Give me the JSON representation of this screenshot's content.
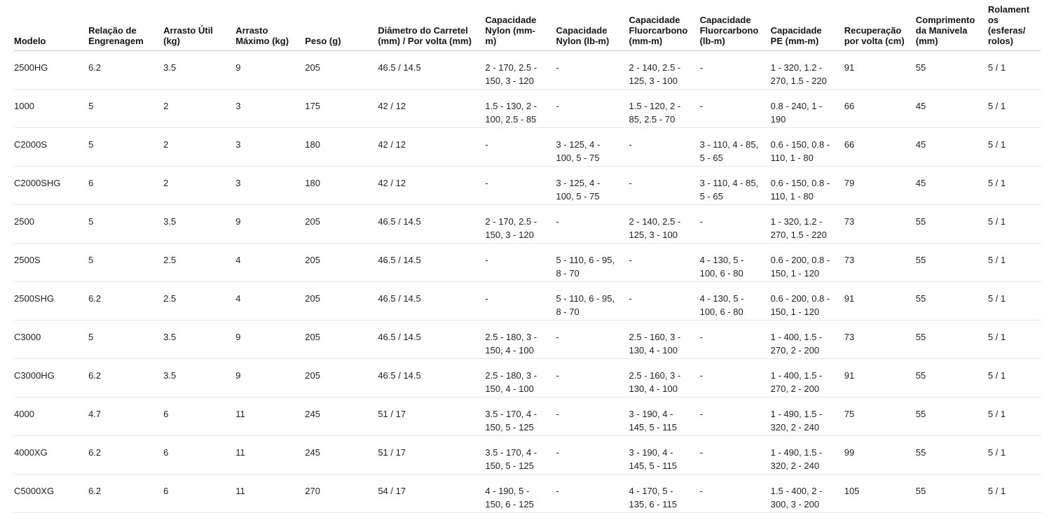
{
  "table": {
    "title": "reel-specifications",
    "colors": {
      "background": "#ffffff",
      "header_text": "#141414",
      "cell_text": "#1f1f1f",
      "header_border": "#c9c9c9",
      "row_border": "#e7e7e7"
    },
    "columns": [
      {
        "id": "modelo",
        "label": "Modelo"
      },
      {
        "id": "relacao_engrenagem",
        "label": "Relação de Engrenagem"
      },
      {
        "id": "arrasto_util",
        "label": "Arrasto Útil (kg)"
      },
      {
        "id": "arrasto_maximo",
        "label": "Arrasto Máximo (kg)"
      },
      {
        "id": "peso",
        "label": "Peso (g)"
      },
      {
        "id": "diametro_carretel",
        "label": "Diâmetro do Carretel (mm) / Por volta (mm)"
      },
      {
        "id": "cap_nylon_mm",
        "label": "Capacidade Nylon (mm-m)"
      },
      {
        "id": "cap_nylon_lb",
        "label": "Capacidade Nylon (lb-m)"
      },
      {
        "id": "cap_fluor_mm",
        "label": "Capacidade Fluorcarbono (mm-m)"
      },
      {
        "id": "cap_fluor_lb",
        "label": "Capacidade Fluorcarbono (lb-m)"
      },
      {
        "id": "cap_pe",
        "label": "Capacidade PE (mm-m)"
      },
      {
        "id": "recuperacao_volta",
        "label": "Recuperação por volta (cm)"
      },
      {
        "id": "comprimento_manivela",
        "label": "Comprimento da Manivela (mm)"
      },
      {
        "id": "rolamentos",
        "label": "Rolamentos (esferas/ rolos)"
      }
    ],
    "rows": [
      [
        "2500HG",
        "6.2",
        "3.5",
        "9",
        "205",
        "46.5 / 14.5",
        "2 - 170, 2.5 - 150, 3 - 120",
        "-",
        "2 - 140, 2.5 - 125, 3 - 100",
        "-",
        "1 - 320, 1.2 - 270, 1.5 - 220",
        "91",
        "55",
        "5 / 1"
      ],
      [
        "1000",
        "5",
        "2",
        "3",
        "175",
        "42 / 12",
        "1.5 - 130, 2 - 100, 2.5 - 85",
        "-",
        "1.5 - 120, 2 - 85, 2.5 - 70",
        "-",
        "0.8 - 240, 1 - 190",
        "66",
        "45",
        "5 / 1"
      ],
      [
        "C2000S",
        "5",
        "2",
        "3",
        "180",
        "42 / 12",
        "-",
        "3 - 125, 4 - 100, 5 - 75",
        "-",
        "3 - 110, 4 - 85, 5 - 65",
        "0.6 - 150, 0.8 - 110, 1 - 80",
        "66",
        "45",
        "5 / 1"
      ],
      [
        "C2000SHG",
        "6",
        "2",
        "3",
        "180",
        "42 / 12",
        "-",
        "3 - 125, 4 - 100, 5 - 75",
        "-",
        "3 - 110, 4 - 85, 5 - 65",
        "0.6 - 150, 0.8 - 110, 1 - 80",
        "79",
        "45",
        "5 / 1"
      ],
      [
        "2500",
        "5",
        "3.5",
        "9",
        "205",
        "46.5 / 14.5",
        "2 - 170, 2.5 - 150, 3 - 120",
        "-",
        "2 - 140, 2.5 - 125, 3 - 100",
        "-",
        "1 - 320, 1.2 - 270, 1.5 - 220",
        "73",
        "55",
        "5 / 1"
      ],
      [
        "2500S",
        "5",
        "2.5",
        "4",
        "205",
        "46.5 / 14.5",
        "-",
        "5 - 110, 6 - 95, 8 - 70",
        "-",
        "4 - 130, 5 - 100, 6 - 80",
        "0.6 - 200, 0.8 - 150, 1 - 120",
        "73",
        "55",
        "5 / 1"
      ],
      [
        "2500SHG",
        "6.2",
        "2.5",
        "4",
        "205",
        "46.5 / 14.5",
        "-",
        "5 - 110, 6 - 95, 8 - 70",
        "-",
        "4 - 130, 5 - 100, 6 - 80",
        "0.6 - 200, 0.8 - 150, 1 - 120",
        "91",
        "55",
        "5 / 1"
      ],
      [
        "C3000",
        "5",
        "3.5",
        "9",
        "205",
        "46.5 / 14.5",
        "2.5 - 180, 3 - 150, 4 - 100",
        "-",
        "2.5 - 160, 3 - 130, 4 - 100",
        "-",
        "1 - 400, 1.5 - 270, 2 - 200",
        "73",
        "55",
        "5 / 1"
      ],
      [
        "C3000HG",
        "6.2",
        "3.5",
        "9",
        "205",
        "46.5 / 14.5",
        "2.5 - 180, 3 - 150, 4 - 100",
        "-",
        "2.5 - 160, 3 - 130, 4 - 100",
        "-",
        "1 - 400, 1.5 - 270, 2 - 200",
        "91",
        "55",
        "5 / 1"
      ],
      [
        "4000",
        "4.7",
        "6",
        "11",
        "245",
        "51 / 17",
        "3.5 - 170, 4 - 150, 5 - 125",
        "-",
        "3 - 190, 4 - 145, 5 - 115",
        "-",
        "1 - 490, 1.5 - 320, 2 - 240",
        "75",
        "55",
        "5 / 1"
      ],
      [
        "4000XG",
        "6.2",
        "6",
        "11",
        "245",
        "51 / 17",
        "3.5 - 170, 4 - 150, 5 - 125",
        "-",
        "3 - 190, 4 - 145, 5 - 115",
        "-",
        "1 - 490, 1.5 - 320, 2 - 240",
        "99",
        "55",
        "5 / 1"
      ],
      [
        "C5000XG",
        "6.2",
        "6",
        "11",
        "270",
        "54 / 17",
        "4 - 190, 5 - 150, 6 - 125",
        "-",
        "4 - 170, 5 - 135, 6 - 115",
        "-",
        "1.5 - 400, 2 - 300, 3 - 200",
        "105",
        "55",
        "5 / 1"
      ]
    ]
  }
}
